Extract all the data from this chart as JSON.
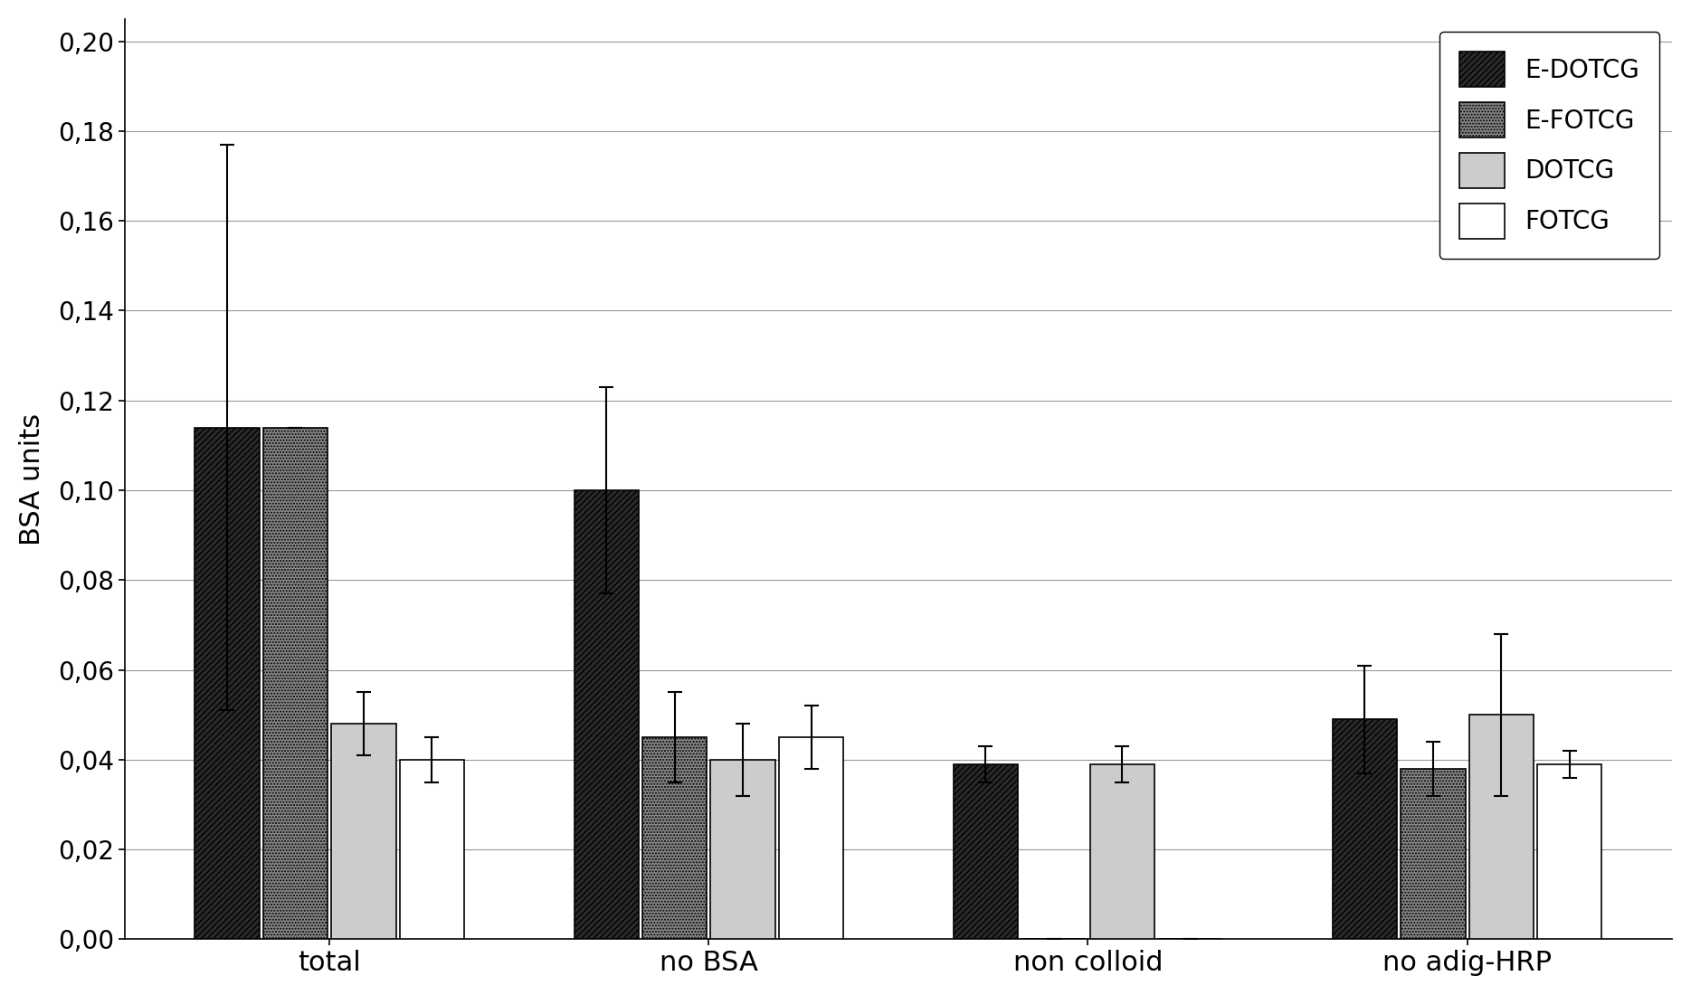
{
  "categories": [
    "total",
    "no BSA",
    "non colloid",
    "no adig-HRP"
  ],
  "series": [
    "E-DOTCG",
    "E-FOTCG",
    "DOTCG",
    "FOTCG"
  ],
  "values": [
    [
      0.114,
      0.114,
      0.048,
      0.04
    ],
    [
      0.1,
      0.045,
      0.04,
      0.045
    ],
    [
      0.039,
      0.0,
      0.039,
      0.0
    ],
    [
      0.049,
      0.038,
      0.05,
      0.039
    ]
  ],
  "errors": [
    [
      0.063,
      0.0,
      0.007,
      0.005
    ],
    [
      0.023,
      0.01,
      0.008,
      0.007
    ],
    [
      0.004,
      0.0,
      0.004,
      0.0
    ],
    [
      0.012,
      0.006,
      0.018,
      0.003
    ]
  ],
  "hatches": [
    "/////",
    ".....",
    "     ",
    ""
  ],
  "colors": [
    "#2a2a2a",
    "#888888",
    "#cccccc",
    "#ffffff"
  ],
  "bar_edge_color": "#000000",
  "ylabel": "BSA units",
  "ylim": [
    0.0,
    0.205
  ],
  "yticks": [
    0.0,
    0.02,
    0.04,
    0.06,
    0.08,
    0.1,
    0.12,
    0.14,
    0.16,
    0.18,
    0.2
  ],
  "background_color": "#ffffff",
  "grid_color": "#999999",
  "legend_labels": [
    "E-DOTCG",
    "E-FOTCG",
    "DOTCG",
    "FOTCG"
  ]
}
